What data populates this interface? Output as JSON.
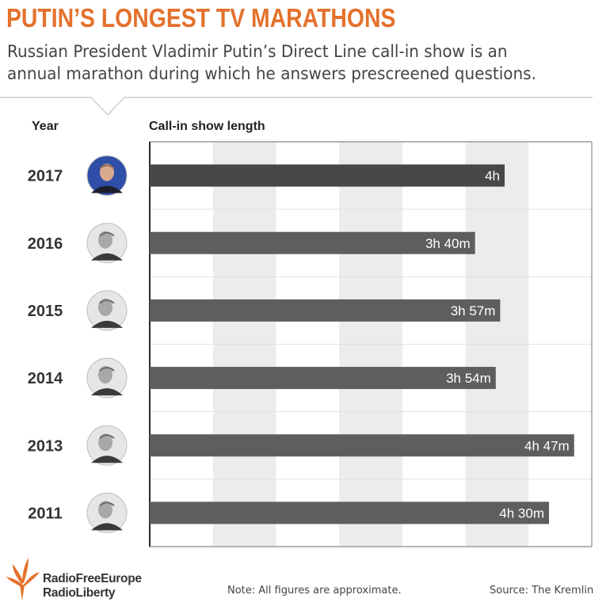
{
  "title": "PUTIN’S LONGEST TV MARATHONS",
  "subtitle": "Russian President Vladimir Putin’s Direct Line call-in show is an annual marathon during which he answers prescreened questions.",
  "columns": {
    "year": "Year",
    "length": "Call-in show length"
  },
  "footer": {
    "note": "Note: All figures are approximate.",
    "source": "Source: The Kremlin",
    "logo_line1": "RadioFreeEurope",
    "logo_line2": "RadioLiberty"
  },
  "colors": {
    "title": "#e4712c",
    "bar_highlight": "#474747",
    "bar": "#5e5e5e",
    "stripe": "#ececec",
    "logo": "#e4712c"
  },
  "chart_data": {
    "type": "bar",
    "orientation": "horizontal",
    "categories": [
      "2017",
      "2016",
      "2015",
      "2014",
      "2013",
      "2011"
    ],
    "values_minutes": [
      240,
      220,
      237,
      234,
      287,
      270
    ],
    "labels": [
      "4h",
      "3h 40m",
      "3h 57m",
      "3h 54m",
      "4h 47m",
      "4h 30m"
    ],
    "xlim_minutes": [
      0,
      300
    ],
    "grid": "alternating vertical bands",
    "highlight": "2017"
  }
}
